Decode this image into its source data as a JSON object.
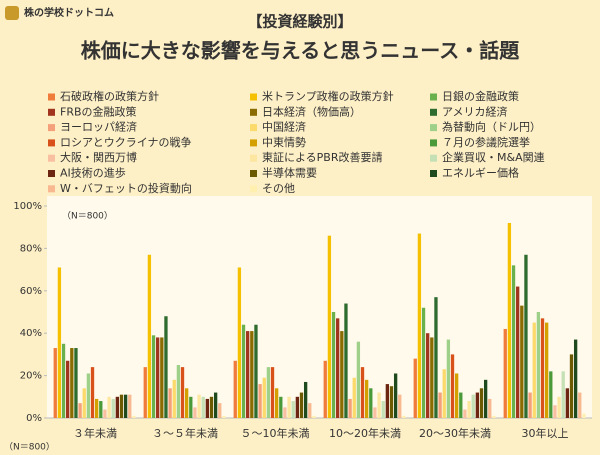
{
  "chart_data": {
    "type": "bar",
    "logo": "株の学校ドットコム",
    "subtitle": "【投資経験別】",
    "title": "株価に大きな影響を与えると思うニュース・話題",
    "note": "（N＝800）",
    "categories": [
      "３年未満",
      "３～５年未満",
      "５～10年未満",
      "10～20年未満",
      "20～30年未満",
      "30年以上"
    ],
    "ylim": [
      0,
      100
    ],
    "yticks": [
      {
        "value": 0,
        "label": "0%"
      },
      {
        "value": 20,
        "label": "20%"
      },
      {
        "value": 40,
        "label": "40%"
      },
      {
        "value": 60,
        "label": "60%"
      },
      {
        "value": 80,
        "label": "80%"
      },
      {
        "value": 100,
        "label": "100%"
      }
    ],
    "grid": false,
    "series": [
      {
        "name": "石破政権の政策方針",
        "color": "#f07c3c",
        "values": [
          33,
          24,
          27,
          27,
          28,
          42
        ]
      },
      {
        "name": "米トランプ政権の政策方針",
        "color": "#f5c000",
        "values": [
          71,
          77,
          71,
          86,
          87,
          92
        ]
      },
      {
        "name": "日銀の金融政策",
        "color": "#6ab04c",
        "values": [
          35,
          39,
          44,
          50,
          52,
          72
        ]
      },
      {
        "name": "FRBの金融政策",
        "color": "#a0341c",
        "values": [
          27,
          38,
          41,
          47,
          40,
          62
        ]
      },
      {
        "name": "日本経済（物価高）",
        "color": "#8a6b00",
        "values": [
          33,
          38,
          41,
          41,
          38,
          53
        ]
      },
      {
        "name": "アメリカ経済",
        "color": "#2e6b2e",
        "values": [
          33,
          48,
          44,
          54,
          57,
          77
        ]
      },
      {
        "name": "ヨーロッパ経済",
        "color": "#f4a07a",
        "values": [
          7,
          14,
          16,
          9,
          12,
          12
        ]
      },
      {
        "name": "中国経済",
        "color": "#fbd96a",
        "values": [
          14,
          18,
          19,
          19,
          23,
          45
        ]
      },
      {
        "name": "為替動向（ドル円）",
        "color": "#9fd08a",
        "values": [
          21,
          25,
          24,
          36,
          37,
          50
        ]
      },
      {
        "name": "ロシアとウクライナの戦争",
        "color": "#d8501a",
        "values": [
          24,
          24,
          24,
          24,
          30,
          47
        ]
      },
      {
        "name": "中東情勢",
        "color": "#d4a000",
        "values": [
          9,
          14,
          14,
          18,
          21,
          45
        ]
      },
      {
        "name": "７月の参議院選挙",
        "color": "#4a9a3a",
        "values": [
          8,
          10,
          10,
          14,
          12,
          22
        ]
      },
      {
        "name": "大阪・関西万博",
        "color": "#f8c0a0",
        "values": [
          4,
          5,
          5,
          5,
          4,
          6
        ]
      },
      {
        "name": "東証によるPBR改善要請",
        "color": "#fde6a0",
        "values": [
          10,
          11,
          10,
          12,
          8,
          10
        ]
      },
      {
        "name": "企業買収・M&A関連",
        "color": "#c4e0b4",
        "values": [
          9,
          10,
          8,
          8,
          11,
          22
        ]
      },
      {
        "name": "AI技術の進歩",
        "color": "#6b2510",
        "values": [
          10,
          9,
          10,
          16,
          12,
          14
        ]
      },
      {
        "name": "半導体需要",
        "color": "#6b5a00",
        "values": [
          11,
          10,
          12,
          15,
          14,
          30
        ]
      },
      {
        "name": "エネルギー価格",
        "color": "#1e4a1e",
        "values": [
          11,
          12,
          17,
          21,
          18,
          37
        ]
      },
      {
        "name": "W・バフェットの投資動向",
        "color": "#f8b890",
        "values": [
          11,
          7,
          7,
          11,
          9,
          12
        ]
      },
      {
        "name": "その他",
        "color": "#fff0b0",
        "values": [
          1,
          1,
          1,
          1,
          1,
          2
        ]
      }
    ]
  }
}
